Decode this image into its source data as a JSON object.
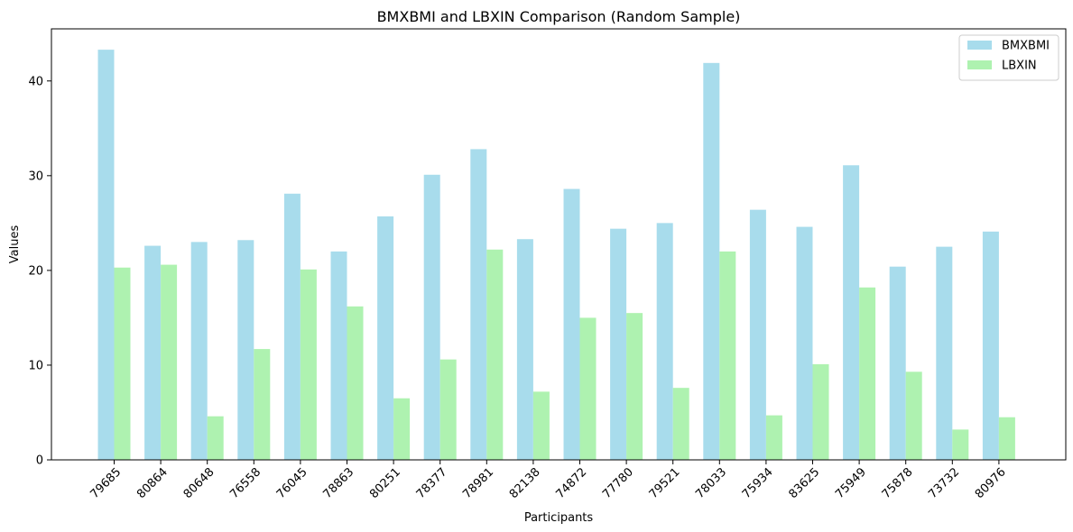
{
  "chart_data": {
    "type": "bar",
    "title": "BMXBMI and LBXIN Comparison (Random Sample)",
    "xlabel": "Participants",
    "ylabel": "Values",
    "ylim": [
      0,
      45.5
    ],
    "yticks": [
      0,
      10,
      20,
      30,
      40
    ],
    "legend_position": "top-right",
    "categories": [
      "79685",
      "80864",
      "80648",
      "76558",
      "76045",
      "78863",
      "80251",
      "78377",
      "78981",
      "82138",
      "74872",
      "77780",
      "79521",
      "78033",
      "75934",
      "83625",
      "75949",
      "75878",
      "73732",
      "80976"
    ],
    "series": [
      {
        "name": "BMXBMI",
        "color": "#a8dcec",
        "values": [
          43.3,
          22.6,
          23.0,
          23.2,
          28.1,
          22.0,
          25.7,
          30.1,
          32.8,
          23.3,
          28.6,
          24.4,
          25.0,
          41.9,
          26.4,
          24.6,
          31.1,
          20.4,
          22.5,
          24.1
        ]
      },
      {
        "name": "LBXIN",
        "color": "#aef2b0",
        "values": [
          20.3,
          20.6,
          4.6,
          11.7,
          20.1,
          16.2,
          6.5,
          10.6,
          22.2,
          7.2,
          15.0,
          15.5,
          7.6,
          22.0,
          4.7,
          10.1,
          18.2,
          9.3,
          3.2,
          4.5
        ]
      }
    ]
  }
}
